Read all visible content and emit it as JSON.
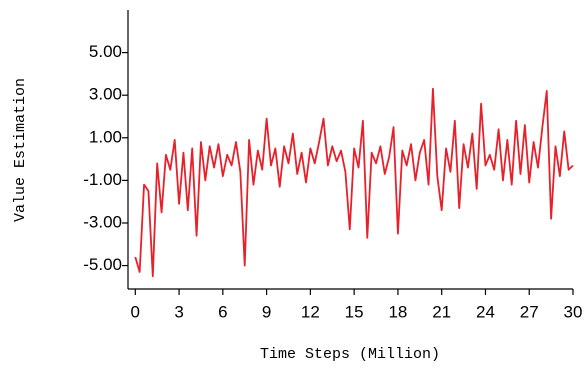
{
  "chart_data": {
    "type": "line",
    "xlabel": "Time Steps (Million)",
    "ylabel": "Value Estimation",
    "color": "#e8202a",
    "xlim": [
      -0.5,
      30
    ],
    "xticks": [
      0,
      3,
      6,
      9,
      12,
      15,
      18,
      21,
      24,
      27,
      30
    ],
    "ylim": [
      -6.1,
      7
    ],
    "yticks": [
      {
        "value": -5,
        "label": "-5.00"
      },
      {
        "value": -3,
        "label": "-3.00"
      },
      {
        "value": -1,
        "label": "-1.00"
      },
      {
        "value": 1,
        "label": "1.00"
      },
      {
        "value": 3,
        "label": "3.00"
      },
      {
        "value": 5,
        "label": "5.00"
      }
    ],
    "grid": false,
    "x": [
      0,
      0.3,
      0.6,
      0.9,
      1.2,
      1.5,
      1.8,
      2.1,
      2.4,
      2.7,
      3.0,
      3.3,
      3.6,
      3.9,
      4.2,
      4.5,
      4.8,
      5.1,
      5.4,
      5.7,
      6.0,
      6.3,
      6.6,
      6.9,
      7.2,
      7.5,
      7.8,
      8.1,
      8.4,
      8.7,
      9.0,
      9.3,
      9.6,
      9.9,
      10.2,
      10.5,
      10.8,
      11.1,
      11.4,
      11.7,
      12.0,
      12.3,
      12.6,
      12.9,
      13.2,
      13.5,
      13.8,
      14.1,
      14.4,
      14.7,
      15.0,
      15.3,
      15.6,
      15.9,
      16.2,
      16.5,
      16.8,
      17.1,
      17.4,
      17.7,
      18.0,
      18.3,
      18.6,
      18.9,
      19.2,
      19.5,
      19.8,
      20.1,
      20.4,
      20.7,
      21.0,
      21.3,
      21.6,
      21.9,
      22.2,
      22.5,
      22.8,
      23.1,
      23.4,
      23.7,
      24.0,
      24.3,
      24.6,
      24.9,
      25.2,
      25.5,
      25.8,
      26.1,
      26.4,
      26.7,
      27.0,
      27.3,
      27.6,
      27.9,
      28.2,
      28.5,
      28.8,
      29.1,
      29.4,
      29.7,
      30.0
    ],
    "values": [
      -4.6,
      -5.3,
      -1.2,
      -1.5,
      -5.5,
      -0.2,
      -2.5,
      0.2,
      -0.5,
      0.9,
      -2.1,
      0.3,
      -2.4,
      0.5,
      -3.6,
      0.8,
      -1.0,
      0.6,
      -0.4,
      0.7,
      -0.8,
      0.2,
      -0.3,
      0.8,
      -0.6,
      -5.0,
      0.9,
      -1.2,
      0.4,
      -0.5,
      1.9,
      -0.3,
      0.5,
      -1.3,
      0.6,
      -0.2,
      1.2,
      -0.7,
      0.3,
      -1.1,
      0.5,
      -0.2,
      0.8,
      1.9,
      -0.3,
      0.6,
      -0.1,
      0.4,
      -0.6,
      -3.3,
      0.5,
      -0.4,
      1.8,
      -3.7,
      0.3,
      -0.2,
      0.6,
      -0.7,
      0.1,
      1.5,
      -3.5,
      0.4,
      -0.3,
      0.7,
      -1.0,
      0.3,
      0.9,
      -1.2,
      3.3,
      -0.8,
      -2.4,
      0.5,
      -0.6,
      1.8,
      -2.3,
      0.7,
      -0.4,
      1.2,
      -1.4,
      2.6,
      -0.3,
      0.2,
      -0.5,
      1.4,
      -1.0,
      0.9,
      -1.2,
      1.8,
      -0.7,
      1.6,
      -1.1,
      0.8,
      -0.4,
      1.5,
      3.2,
      -2.8,
      0.6,
      -0.8,
      1.3,
      -0.5,
      -0.3
    ]
  }
}
